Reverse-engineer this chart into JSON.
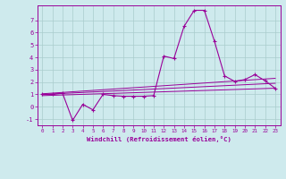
{
  "xlabel": "Windchill (Refroidissement éolien,°C)",
  "background_color": "#ceeaed",
  "grid_color": "#aacccc",
  "line_color": "#990099",
  "xlim": [
    -0.5,
    23.5
  ],
  "ylim": [
    -1.5,
    8.2
  ],
  "xticks": [
    0,
    1,
    2,
    3,
    4,
    5,
    6,
    7,
    8,
    9,
    10,
    11,
    12,
    13,
    14,
    15,
    16,
    17,
    18,
    19,
    20,
    21,
    22,
    23
  ],
  "yticks": [
    -1,
    0,
    1,
    2,
    3,
    4,
    5,
    6,
    7
  ],
  "series": {
    "main_curve": {
      "x": [
        0,
        1,
        2,
        3,
        4,
        5,
        6,
        7,
        8,
        9,
        10,
        11,
        12,
        13,
        14,
        15,
        16,
        17,
        18,
        19,
        20,
        21,
        22,
        23
      ],
      "y": [
        1.0,
        1.0,
        1.1,
        -1.1,
        0.2,
        -0.25,
        1.0,
        0.9,
        0.85,
        0.85,
        0.85,
        0.9,
        4.1,
        3.9,
        6.5,
        7.8,
        7.8,
        5.3,
        2.5,
        2.05,
        2.2,
        2.6,
        2.1,
        1.5
      ]
    },
    "regression_upper": {
      "x": [
        0,
        23
      ],
      "y": [
        1.05,
        2.3
      ]
    },
    "regression_lower": {
      "x": [
        0,
        23
      ],
      "y": [
        0.9,
        1.5
      ]
    },
    "regression_mid": {
      "x": [
        0,
        23
      ],
      "y": [
        1.0,
        1.9
      ]
    }
  }
}
